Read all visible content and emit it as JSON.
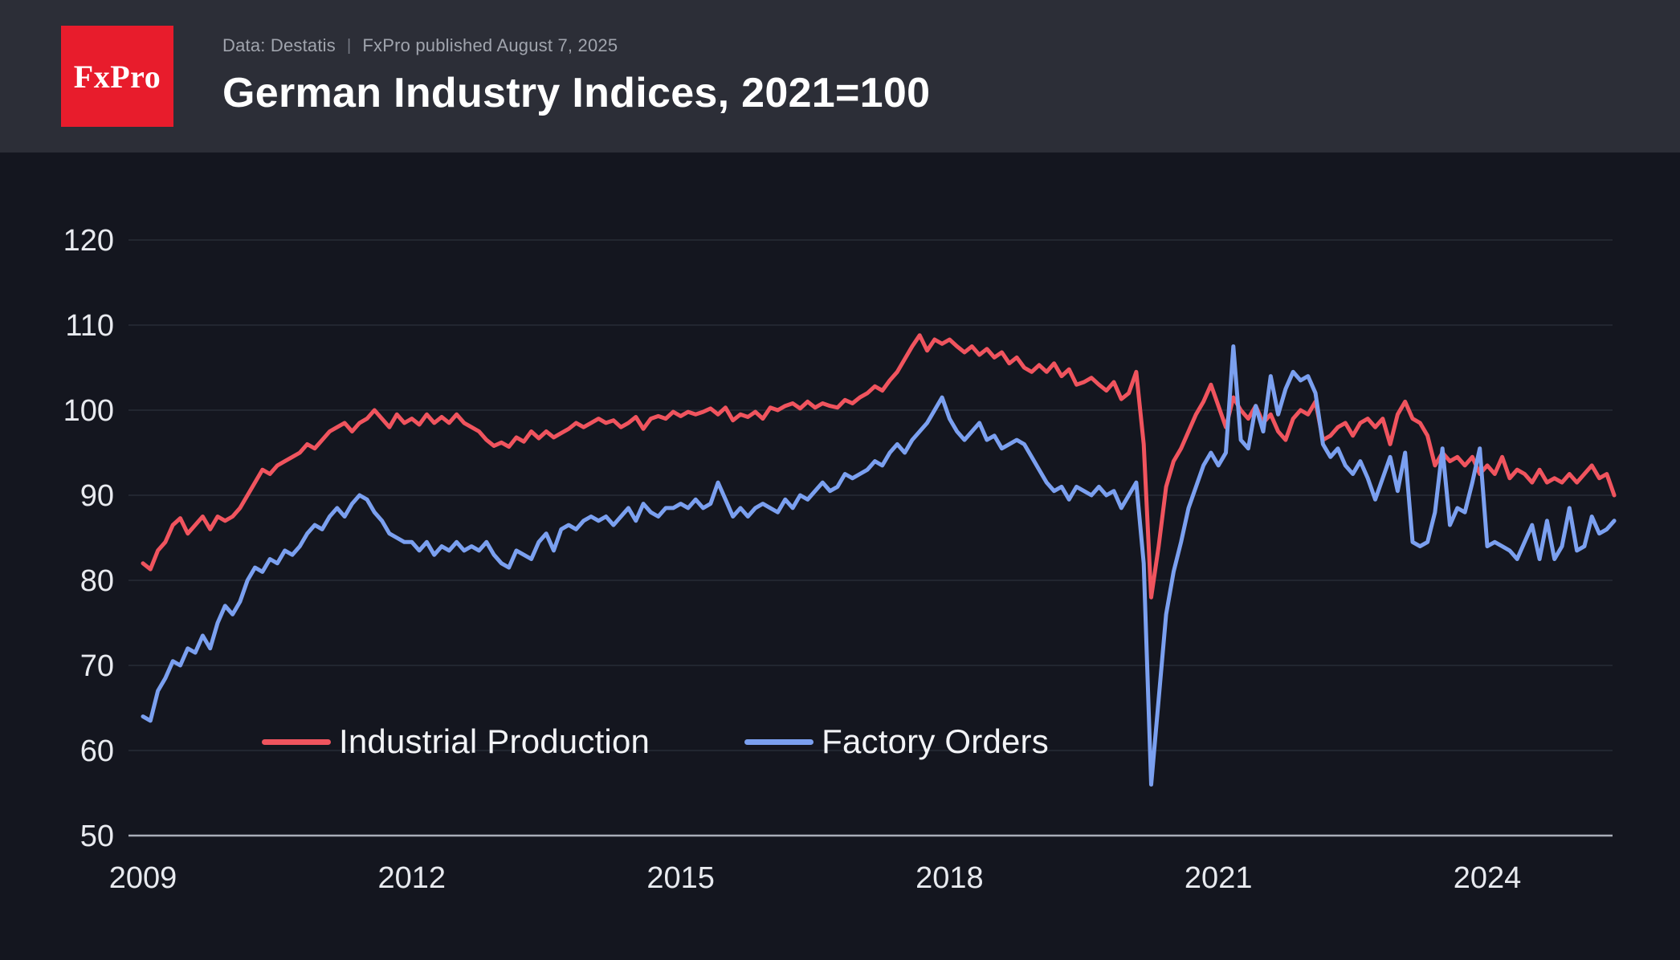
{
  "header": {
    "logo_text": "FxPro",
    "meta_source": "Data: Destatis",
    "meta_separator": "|",
    "meta_published": "FxPro published August 7, 2025",
    "title": "German Industry Indices, 2021=100"
  },
  "colors": {
    "background": "#14161f",
    "header_bg": "#2c2e37",
    "logo_red": "#e81c2c",
    "meta_color": "#a0a4ad",
    "grid": "#272b36",
    "axis": "#a9aeb9",
    "tick_label": "#e8eaef",
    "industrial_production": "#f0545e",
    "factory_orders": "#7ba0f0"
  },
  "chart_data": {
    "type": "line",
    "title": "German Industry Indices, 2021=100",
    "source": "Data: Destatis",
    "frequency": "monthly",
    "x_start": "2009-01",
    "x_end": "2025-06",
    "ylim": [
      50,
      122
    ],
    "y_ticks": [
      50,
      60,
      70,
      80,
      90,
      100,
      110,
      120
    ],
    "x_ticks": [
      2009,
      2012,
      2015,
      2018,
      2021,
      2024
    ],
    "grid": "horizontal",
    "legend_position": "bottom-inside",
    "series": [
      {
        "name": "Industrial Production",
        "color": "#f0545e",
        "values": [
          82.0,
          81.3,
          83.5,
          84.5,
          86.5,
          87.3,
          85.5,
          86.5,
          87.5,
          86.0,
          87.5,
          87.0,
          87.5,
          88.5,
          90.0,
          91.5,
          93.0,
          92.5,
          93.5,
          94.0,
          94.5,
          95.0,
          96.0,
          95.5,
          96.5,
          97.5,
          98.0,
          98.5,
          97.5,
          98.5,
          99.0,
          100.0,
          99.0,
          98.0,
          99.5,
          98.5,
          99.0,
          98.3,
          99.5,
          98.5,
          99.2,
          98.5,
          99.5,
          98.5,
          98.0,
          97.5,
          96.5,
          95.8,
          96.2,
          95.7,
          96.8,
          96.3,
          97.5,
          96.7,
          97.5,
          96.8,
          97.3,
          97.8,
          98.5,
          98.0,
          98.5,
          99.0,
          98.5,
          98.8,
          98.0,
          98.5,
          99.2,
          97.8,
          99.0,
          99.3,
          99.0,
          99.8,
          99.3,
          99.8,
          99.5,
          99.8,
          100.2,
          99.5,
          100.3,
          98.8,
          99.5,
          99.2,
          99.8,
          99.0,
          100.3,
          100.0,
          100.5,
          100.8,
          100.2,
          101.0,
          100.3,
          100.8,
          100.5,
          100.3,
          101.2,
          100.8,
          101.5,
          102.0,
          102.8,
          102.3,
          103.5,
          104.5,
          106.0,
          107.5,
          108.8,
          107.0,
          108.3,
          107.8,
          108.3,
          107.5,
          106.8,
          107.5,
          106.5,
          107.2,
          106.2,
          106.8,
          105.5,
          106.2,
          105.0,
          104.5,
          105.3,
          104.5,
          105.5,
          104.0,
          104.8,
          103.0,
          103.3,
          103.8,
          103.0,
          102.3,
          103.3,
          101.3,
          102.0,
          104.5,
          96.0,
          78.0,
          84.0,
          91.0,
          94.0,
          95.5,
          97.5,
          99.5,
          101.0,
          103.0,
          100.5,
          98.0,
          101.5,
          100.0,
          99.0,
          100.5,
          98.5,
          99.5,
          97.5,
          96.5,
          99.0,
          100.0,
          99.5,
          101.0,
          96.5,
          97.0,
          98.0,
          98.5,
          97.0,
          98.5,
          99.0,
          98.0,
          99.0,
          96.0,
          99.5,
          101.0,
          99.0,
          98.5,
          97.0,
          93.5,
          95.0,
          94.0,
          94.5,
          93.5,
          94.5,
          92.5,
          93.5,
          92.5,
          94.5,
          92.0,
          93.0,
          92.5,
          91.5,
          93.0,
          91.5,
          92.0,
          91.5,
          92.5,
          91.5,
          92.5,
          93.5,
          92.0,
          92.5,
          90.0
        ]
      },
      {
        "name": "Factory Orders",
        "color": "#7ba0f0",
        "values": [
          64.0,
          63.5,
          67.0,
          68.5,
          70.5,
          70.0,
          72.0,
          71.5,
          73.5,
          72.0,
          75.0,
          77.0,
          76.0,
          77.5,
          80.0,
          81.5,
          81.0,
          82.5,
          82.0,
          83.5,
          83.0,
          84.0,
          85.5,
          86.5,
          86.0,
          87.5,
          88.5,
          87.5,
          89.0,
          90.0,
          89.5,
          88.0,
          87.0,
          85.5,
          85.0,
          84.5,
          84.5,
          83.5,
          84.5,
          83.0,
          84.0,
          83.5,
          84.5,
          83.5,
          84.0,
          83.5,
          84.5,
          83.0,
          82.0,
          81.5,
          83.5,
          83.0,
          82.5,
          84.5,
          85.5,
          83.5,
          86.0,
          86.5,
          86.0,
          87.0,
          87.5,
          87.0,
          87.5,
          86.5,
          87.5,
          88.5,
          87.0,
          89.0,
          88.0,
          87.5,
          88.5,
          88.5,
          89.0,
          88.5,
          89.5,
          88.5,
          89.0,
          91.5,
          89.5,
          87.5,
          88.5,
          87.5,
          88.5,
          89.0,
          88.5,
          88.0,
          89.5,
          88.5,
          90.0,
          89.5,
          90.5,
          91.5,
          90.5,
          91.0,
          92.5,
          92.0,
          92.5,
          93.0,
          94.0,
          93.5,
          95.0,
          96.0,
          95.0,
          96.5,
          97.5,
          98.5,
          100.0,
          101.5,
          99.0,
          97.5,
          96.5,
          97.5,
          98.5,
          96.5,
          97.0,
          95.5,
          96.0,
          96.5,
          96.0,
          94.5,
          93.0,
          91.5,
          90.5,
          91.0,
          89.5,
          91.0,
          90.5,
          90.0,
          91.0,
          90.0,
          90.5,
          88.5,
          90.0,
          91.5,
          82.0,
          56.0,
          66.0,
          76.0,
          81.0,
          84.5,
          88.5,
          91.0,
          93.5,
          95.0,
          93.5,
          95.0,
          107.5,
          96.5,
          95.5,
          100.5,
          97.5,
          104.0,
          99.5,
          102.5,
          104.5,
          103.5,
          104.0,
          102.0,
          96.0,
          94.5,
          95.5,
          93.5,
          92.5,
          94.0,
          92.0,
          89.5,
          92.0,
          94.5,
          90.5,
          95.0,
          84.5,
          84.0,
          84.5,
          88.0,
          95.5,
          86.5,
          88.5,
          88.0,
          91.5,
          95.5,
          84.0,
          84.5,
          84.0,
          83.5,
          82.5,
          84.5,
          86.5,
          82.5,
          87.0,
          82.5,
          84.0,
          88.5,
          83.5,
          84.0,
          87.5,
          85.5,
          86.0,
          87.0
        ]
      }
    ]
  }
}
